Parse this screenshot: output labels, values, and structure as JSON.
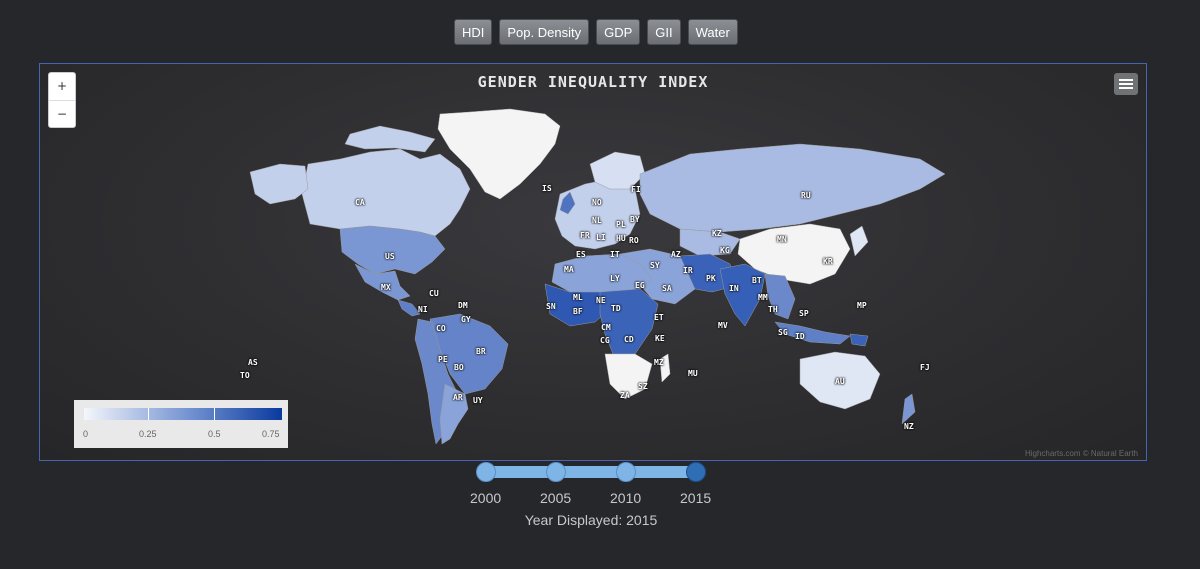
{
  "buttons": [
    "HDI",
    "Pop. Density",
    "GDP",
    "GII",
    "Water"
  ],
  "map": {
    "title": "GENDER INEQUALITY INDEX",
    "zoom_in": "+",
    "zoom_out": "−",
    "credits": "Highcharts.com © Natural Earth",
    "colors": {
      "low": "#dfe6f4",
      "mid": "#7a97d4",
      "high": "#0a3a9e",
      "none": "#f4f4f4",
      "background": "#2e2e31"
    },
    "country_labels": [
      "CA",
      "IS",
      "FI",
      "NO",
      "RU",
      "BY",
      "PL",
      "NL",
      "LI",
      "HU",
      "RO",
      "FR",
      "KZ",
      "IT",
      "ES",
      "US",
      "MN",
      "KG",
      "AZ",
      "KR",
      "MA",
      "SY",
      "IR",
      "LY",
      "PK",
      "BT",
      "MX",
      "CU",
      "EG",
      "SA",
      "IN",
      "MM",
      "DM",
      "ML",
      "NE",
      "TH",
      "MP",
      "NI",
      "GY",
      "SN",
      "BF",
      "TD",
      "SP",
      "ET",
      "CO",
      "CM",
      "CG",
      "CD",
      "KE",
      "MV",
      "SG",
      "ID",
      "BR",
      "PE",
      "BO",
      "MZ",
      "MU",
      "FJ",
      "AS",
      "TO",
      "AU",
      "AR",
      "UY",
      "ZA",
      "SZ",
      "NZ"
    ]
  },
  "legend": {
    "labels": [
      "0",
      "0.25",
      "0.5",
      "0.75"
    ]
  },
  "slider": {
    "years": [
      "2000",
      "2005",
      "2010",
      "2015"
    ],
    "selected": "2015"
  },
  "year_display": "Year Displayed: 2015"
}
